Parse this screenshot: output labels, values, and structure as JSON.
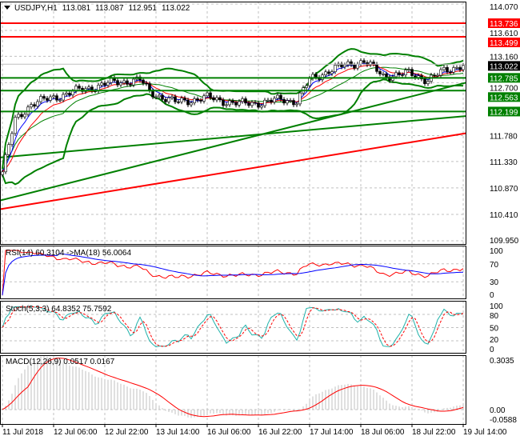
{
  "header": {
    "symbol": "USDJPY,H1",
    "open": "113.081",
    "high": "113.087",
    "low": "112.951",
    "close": "113.022"
  },
  "colors": {
    "up": "#008000",
    "down": "#000000",
    "bb": "#008000",
    "ma_fast": "#0000ff",
    "ma_mid": "#ff0000",
    "level_red": "#ff0000",
    "level_green": "#008000",
    "rsi": "#ff0000",
    "rsi_ma": "#0000ff",
    "stoch_main": "#20b2aa",
    "stoch_signal": "#ff0000",
    "macd_hist": "#c0c0c0",
    "macd_signal": "#ff0000"
  },
  "chart_data": [
    {
      "type": "candlestick",
      "title": "USDJPY,H1",
      "x_ticks": [
        "11 Jul 2018",
        "12 Jul 06:00",
        "12 Jul 22:00",
        "13 Jul 14:00",
        "16 Jul 06:00",
        "16 Jul 22:00",
        "17 Jul 14:00",
        "18 Jul 06:00",
        "18 Jul 22:00",
        "19 Jul 14:00"
      ],
      "y_ticks": [
        "114.070",
        "113.610",
        "113.160",
        "112.700",
        "111.780",
        "111.330",
        "110.870",
        "110.410",
        "109.950"
      ],
      "ylim": [
        109.95,
        114.07
      ],
      "close_path": [
        [
          0,
          111.15
        ],
        [
          4,
          112.05
        ],
        [
          9,
          112.33
        ],
        [
          22,
          112.54
        ],
        [
          34,
          112.7
        ],
        [
          43,
          112.75
        ],
        [
          46,
          112.54
        ],
        [
          54,
          112.36
        ],
        [
          64,
          112.44
        ],
        [
          74,
          112.33
        ],
        [
          82,
          112.36
        ],
        [
          87,
          112.41
        ],
        [
          92,
          112.38
        ],
        [
          96,
          112.75
        ],
        [
          102,
          112.91
        ],
        [
          107,
          113.0
        ],
        [
          113,
          113.08
        ],
        [
          119,
          112.82
        ],
        [
          127,
          112.86
        ],
        [
          133,
          112.75
        ],
        [
          138,
          112.9
        ],
        [
          144,
          113.02
        ]
      ],
      "levels": [
        {
          "value": "113.736",
          "color": "#ff0000"
        },
        {
          "value": "113.499",
          "color": "#ff0000"
        },
        {
          "value": "113.022",
          "color": "#000000"
        },
        {
          "value": "112.785",
          "color": "#008000"
        },
        {
          "value": "112.563",
          "color": "#008000"
        },
        {
          "value": "112.199",
          "color": "#008000"
        }
      ],
      "trend_lines": [
        {
          "color": "#008000",
          "from": 110.65,
          "to": 112.7
        },
        {
          "color": "#008000",
          "from": 111.4,
          "to": 112.12
        },
        {
          "color": "#ff0000",
          "from": 110.5,
          "to": 111.82
        }
      ]
    },
    {
      "type": "line",
      "label": "RSI(14) 60.3104  ->MA(18) 56.0064",
      "y_ticks": [
        "100",
        "70",
        "30",
        "0"
      ],
      "ylim": [
        0,
        100
      ]
    },
    {
      "type": "line",
      "label": "Stoch(5,3,3) 64.8352 75.7592",
      "y_ticks": [
        "100",
        "80",
        "50",
        "20",
        "0"
      ],
      "ylim": [
        0,
        100
      ]
    },
    {
      "type": "bar",
      "label": "MACD(12,26,9) 0.0517 0.0167",
      "y_ticks": [
        "0.3035",
        "0.00",
        "-0.0588"
      ],
      "ylim": [
        -0.0588,
        0.3035
      ]
    }
  ]
}
